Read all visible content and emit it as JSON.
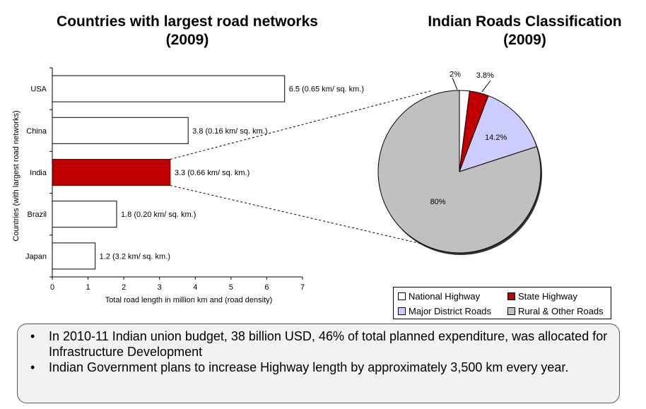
{
  "bar_title_line1": "Countries with largest road networks",
  "bar_title_line2": "(2009)",
  "pie_title_line1": "Indian Roads Classification",
  "pie_title_line2": "(2009)",
  "chart_data": [
    {
      "type": "bar",
      "orientation": "horizontal",
      "categories": [
        "USA",
        "China",
        "India",
        "Brazil",
        "Japan"
      ],
      "values": [
        6.5,
        3.8,
        3.3,
        1.8,
        1.2
      ],
      "data_labels": [
        "6.5  (0.65 km/ sq. km.)",
        "3.8  (0.16 km/ sq. km.)",
        "3.3  (0.66 km/ sq. km.)",
        "1.8  (0.20 km/ sq. km.)",
        "1.2  (3.2 km/ sq. km.)"
      ],
      "highlight": "India",
      "colors": {
        "default": "#ffffff",
        "highlight": "#c00000",
        "highlight_border": "#800000"
      },
      "xlabel": "Total road length in million km and (road density)",
      "ylabel": "Countries (with largest road networks)",
      "xlim": [
        0,
        7
      ],
      "xticks": [
        "0",
        "1",
        "2",
        "3",
        "4",
        "5",
        "6",
        "7"
      ],
      "grid": false
    },
    {
      "type": "pie",
      "slices": [
        {
          "name": "National Highway",
          "value": 2,
          "label": "2%",
          "color": "#ffffff"
        },
        {
          "name": "State Highway",
          "value": 3.8,
          "label": "3.8%",
          "color": "#c00000"
        },
        {
          "name": "Major District Roads",
          "value": 14.2,
          "label": "14.2%",
          "color": "#ccccff"
        },
        {
          "name": "Rural & Other Roads",
          "value": 80,
          "label": "80%",
          "color": "#c0c0c0"
        }
      ],
      "legend_placement": "bottom"
    }
  ],
  "notes": [
    "In 2010-11 Indian union budget, 38 billion USD, 46% of total planned expenditure, was allocated for Infrastructure Development",
    "Indian Government plans to increase Highway length by approximately 3,500 km every year."
  ],
  "bullet_char": "•"
}
